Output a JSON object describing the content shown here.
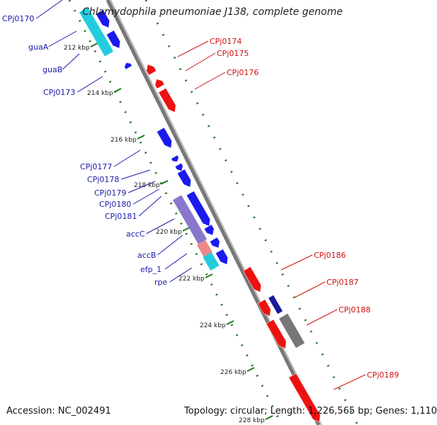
{
  "title": "Chlamydophila pneumoniae J138, complete genome",
  "footer": {
    "accession": "Accession: NC_002491",
    "summary": "Topology: circular; Length: 1,226,565 bp; Genes: 1,110"
  },
  "ticks": [
    "212 kbp",
    "214 kbp",
    "216 kbp",
    "218 kbp",
    "220 kbp",
    "222 kbp",
    "224 kbp",
    "226 kbp",
    "228 kbp"
  ],
  "genes_left": [
    "CPj0170",
    "guaA",
    "guaB",
    "CPj0173",
    "CPj0177",
    "CPj0178",
    "CPj0179",
    "CPj0180",
    "CPj0181",
    "accC",
    "accB",
    "efp_1",
    "rpe"
  ],
  "genes_right": [
    "CPj0174",
    "CPj0175",
    "CPj0176",
    "CPj0186",
    "CPj0187",
    "CPj0188",
    "CPj0189"
  ],
  "colors": {
    "forward_cds": "#ee1111",
    "reverse_cds": "#1a1aee",
    "left_label": "#1a1aaa",
    "right_label": "#cc1111",
    "backbone": "#888888",
    "tick": "#1a7a1a",
    "cyan_feature": "#22ccdd",
    "purple_feature": "#8877cc",
    "pink_feature": "#ee8888",
    "gray_feature": "#777777"
  }
}
